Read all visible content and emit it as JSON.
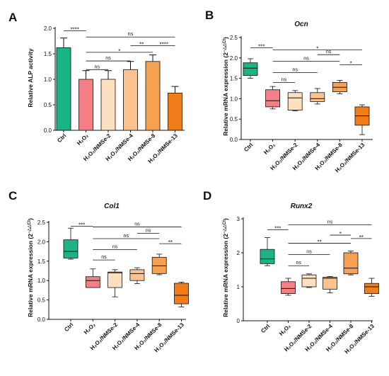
{
  "chart_data": [
    {
      "panel": "A",
      "type": "bar",
      "title": "",
      "ylabel": "Relative ALP activity",
      "xlabel": "",
      "ylim": [
        0,
        2.0
      ],
      "yticks": [
        "0.0",
        "0.5",
        "1.0",
        "1.5",
        "2.0"
      ],
      "categories": [
        "Ctrl",
        "H₂O₂",
        "H₂O₂/NMSe-2",
        "H₂O₂/NMSe-4",
        "H₂O₂/NMSe-8",
        "H₂O₂/NMSe-13"
      ],
      "values": [
        1.62,
        1.0,
        1.0,
        1.19,
        1.35,
        0.73
      ],
      "errors": [
        0.19,
        0.17,
        0.17,
        0.16,
        0.13,
        0.13
      ],
      "colors": [
        "#1bb486",
        "#f47f84",
        "#fde0c0",
        "#fcc38e",
        "#f6a052",
        "#f27c1a"
      ],
      "significance": [
        {
          "from": 0,
          "to": 1,
          "label": "****",
          "y": 1.95
        },
        {
          "from": 1,
          "to": 5,
          "label": "ns",
          "y": 1.83
        },
        {
          "from": 1,
          "to": 4,
          "label": "*",
          "y": 1.53
        },
        {
          "from": 1,
          "to": 3,
          "label": "ns",
          "y": 1.36
        },
        {
          "from": 1,
          "to": 2,
          "label": "ns",
          "y": 1.19
        },
        {
          "from": 3,
          "to": 4,
          "label": "**",
          "y": 1.66
        },
        {
          "from": 4,
          "to": 5,
          "label": "****",
          "y": 1.66
        }
      ]
    },
    {
      "panel": "B",
      "type": "box",
      "title": "Ocn",
      "ylabel": "Relative mRNA expression (2^−ΔΔCt)",
      "ylim": [
        0,
        2.5
      ],
      "yticks": [
        "0.0",
        "0.5",
        "1.0",
        "1.5",
        "2.0",
        "2.5"
      ],
      "categories": [
        "Ctrl",
        "H₂O₂",
        "H₂O₂/NMSe-2",
        "H₂O₂/NMSe-4",
        "H₂O₂/NMSe-8",
        "H₂O₂/NMSe-13"
      ],
      "boxes": [
        {
          "min": 1.5,
          "q1": 1.57,
          "median": 1.75,
          "q3": 1.88,
          "max": 1.98
        },
        {
          "min": 0.75,
          "q1": 0.8,
          "median": 0.95,
          "q3": 1.22,
          "max": 1.3
        },
        {
          "min": 0.7,
          "q1": 0.72,
          "median": 1.02,
          "q3": 1.15,
          "max": 1.2
        },
        {
          "min": 0.87,
          "q1": 0.93,
          "median": 1.0,
          "q3": 1.15,
          "max": 1.25
        },
        {
          "min": 1.12,
          "q1": 1.17,
          "median": 1.28,
          "q3": 1.4,
          "max": 1.45
        },
        {
          "min": 0.12,
          "q1": 0.35,
          "median": 0.58,
          "q3": 0.8,
          "max": 0.85
        }
      ],
      "colors": [
        "#1bb486",
        "#f47f84",
        "#fde0c0",
        "#fcc38e",
        "#f6a052",
        "#f27c1a"
      ],
      "significance": [
        {
          "from": 0,
          "to": 1,
          "label": "***",
          "y": 2.25
        },
        {
          "from": 1,
          "to": 5,
          "label": "*",
          "y": 2.2
        },
        {
          "from": 1,
          "to": 4,
          "label": "ns",
          "y": 1.92
        },
        {
          "from": 1,
          "to": 3,
          "label": "ns",
          "y": 1.64
        },
        {
          "from": 1,
          "to": 2,
          "label": "ns",
          "y": 1.4
        },
        {
          "from": 3,
          "to": 4,
          "label": "ns",
          "y": 2.08
        },
        {
          "from": 4,
          "to": 5,
          "label": "*",
          "y": 1.83
        }
      ]
    },
    {
      "panel": "C",
      "type": "box",
      "title": "Col1",
      "ylabel": "Relative mRNA expression (2^−ΔΔCt)",
      "ylim": [
        0,
        2.5
      ],
      "yticks": [
        "0.0",
        "0.5",
        "1.0",
        "1.5",
        "2.0",
        "2.5"
      ],
      "categories": [
        "Ctrl",
        "H₂O₂",
        "H₂O₂/NMSe-2",
        "H₂O₂/NMSe-4",
        "H₂O₂/NMSe-8",
        "H₂O₂/NMSe-13"
      ],
      "boxes": [
        {
          "min": 1.55,
          "q1": 1.58,
          "median": 1.75,
          "q3": 2.05,
          "max": 2.35
        },
        {
          "min": 0.82,
          "q1": 0.82,
          "median": 1.0,
          "q3": 1.1,
          "max": 1.3
        },
        {
          "min": 0.58,
          "q1": 0.82,
          "median": 1.2,
          "q3": 1.22,
          "max": 1.28
        },
        {
          "min": 0.92,
          "q1": 1.0,
          "median": 1.18,
          "q3": 1.28,
          "max": 1.33
        },
        {
          "min": 1.15,
          "q1": 1.18,
          "median": 1.38,
          "q3": 1.6,
          "max": 1.68
        },
        {
          "min": 0.32,
          "q1": 0.4,
          "median": 0.62,
          "q3": 0.93,
          "max": 0.96
        }
      ],
      "colors": [
        "#1bb486",
        "#f47f84",
        "#fde0c0",
        "#fcc38e",
        "#f6a052",
        "#f27c1a"
      ],
      "significance": [
        {
          "from": 0,
          "to": 1,
          "label": "***",
          "y": 2.4
        },
        {
          "from": 1,
          "to": 5,
          "label": "ns",
          "y": 2.38
        },
        {
          "from": 1,
          "to": 4,
          "label": "ns",
          "y": 2.08
        },
        {
          "from": 1,
          "to": 3,
          "label": "ns",
          "y": 1.8
        },
        {
          "from": 1,
          "to": 2,
          "label": "ns",
          "y": 1.53
        },
        {
          "from": 3,
          "to": 4,
          "label": "ns",
          "y": 2.22
        },
        {
          "from": 4,
          "to": 5,
          "label": "**",
          "y": 1.95
        }
      ]
    },
    {
      "panel": "D",
      "type": "box",
      "title": "Runx2",
      "ylabel": "Relative mRNA expression (2^−ΔΔCt)",
      "ylim": [
        0,
        3
      ],
      "yticks": [
        "0",
        "1",
        "2",
        "3"
      ],
      "categories": [
        "Ctrl",
        "H₂O₂",
        "H₂O₂/NMSe-2",
        "H₂O₂/NMSe-4",
        "H₂O₂/NMSe-8",
        "H₂O₂/NMSe-13"
      ],
      "boxes": [
        {
          "min": 1.62,
          "q1": 1.68,
          "median": 1.82,
          "q3": 2.1,
          "max": 2.45
        },
        {
          "min": 0.75,
          "q1": 0.8,
          "median": 0.95,
          "q3": 1.15,
          "max": 1.25
        },
        {
          "min": 0.98,
          "q1": 1.0,
          "median": 1.25,
          "q3": 1.35,
          "max": 1.38
        },
        {
          "min": 0.82,
          "q1": 0.93,
          "median": 1.25,
          "q3": 1.28,
          "max": 1.3
        },
        {
          "min": 1.35,
          "q1": 1.38,
          "median": 1.55,
          "q3": 2.0,
          "max": 2.05
        },
        {
          "min": 0.72,
          "q1": 0.8,
          "median": 1.0,
          "q3": 1.1,
          "max": 1.25
        }
      ],
      "colors": [
        "#1bb486",
        "#f47f84",
        "#fde0c0",
        "#fcc38e",
        "#f6a052",
        "#f27c1a"
      ],
      "significance": [
        {
          "from": 0,
          "to": 1,
          "label": "***",
          "y": 2.68
        },
        {
          "from": 1,
          "to": 5,
          "label": "ns",
          "y": 2.82
        },
        {
          "from": 1,
          "to": 4,
          "label": "**",
          "y": 2.28
        },
        {
          "from": 1,
          "to": 3,
          "label": "ns",
          "y": 1.95
        },
        {
          "from": 1,
          "to": 2,
          "label": "ns",
          "y": 1.62
        },
        {
          "from": 3,
          "to": 4,
          "label": "*",
          "y": 2.52
        },
        {
          "from": 4,
          "to": 5,
          "label": "**",
          "y": 2.42
        }
      ]
    }
  ]
}
